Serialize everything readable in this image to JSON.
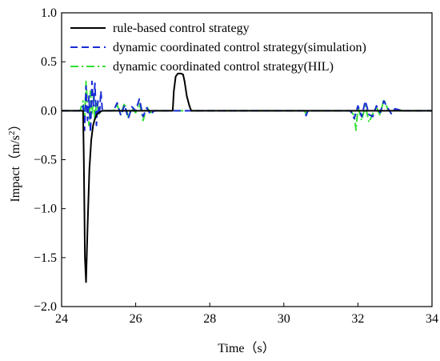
{
  "chart_data": {
    "type": "line",
    "xlabel": "Time（s）",
    "ylabel_main": "Impact（m/s",
    "ylabel_sup": "2",
    "ylabel_end": "）",
    "xlim": [
      24,
      34
    ],
    "ylim": [
      -2.0,
      1.0
    ],
    "xticks": [
      24,
      26,
      28,
      30,
      32,
      34
    ],
    "xtick_labels": [
      "24",
      "26",
      "28",
      "30",
      "32",
      "34"
    ],
    "yticks": [
      1.0,
      0.5,
      0.0,
      -0.5,
      -1.0,
      -1.5,
      -2.0
    ],
    "ytick_labels": [
      "1.0",
      "0.5",
      "0.0",
      "−0.5",
      "−1.0",
      "−1.5",
      "−2.0"
    ],
    "grid": false,
    "legend_position": "top-left",
    "series": [
      {
        "name": "rule-based control strategy",
        "color": "#000000",
        "dash": "solid",
        "x": [
          24.0,
          24.58,
          24.6,
          24.63,
          24.66,
          24.7,
          24.75,
          24.8,
          24.85,
          24.9,
          24.95,
          25.0,
          25.05,
          25.1,
          25.2,
          25.3,
          27.0,
          27.03,
          27.08,
          27.14,
          27.22,
          27.28,
          27.32,
          27.38,
          27.45,
          27.5,
          34.0
        ],
        "y": [
          0.0,
          0.0,
          -0.5,
          -1.5,
          -1.75,
          -1.2,
          -0.6,
          -0.3,
          -0.15,
          -0.08,
          -0.04,
          -0.02,
          -0.01,
          0.0,
          0.0,
          0.0,
          0.0,
          0.2,
          0.35,
          0.38,
          0.38,
          0.37,
          0.3,
          0.15,
          0.05,
          0.0,
          0.0
        ]
      },
      {
        "name": "dynamic coordinated control strategy(simulation)",
        "color": "#1a2bd6",
        "dash": "dashed",
        "x": [
          24.0,
          24.5,
          24.58,
          24.62,
          24.66,
          24.7,
          24.74,
          24.78,
          24.82,
          24.86,
          24.9,
          24.94,
          24.98,
          25.02,
          25.06,
          25.1,
          25.2,
          25.4,
          25.5,
          25.6,
          25.7,
          25.8,
          25.9,
          26.0,
          26.1,
          26.2,
          26.3,
          26.4,
          26.5,
          26.7,
          27.0,
          30.0,
          30.55,
          30.6,
          30.65,
          30.7,
          31.8,
          31.9,
          32.0,
          32.1,
          32.2,
          32.3,
          32.4,
          32.5,
          32.6,
          32.7,
          32.8,
          32.9,
          33.0,
          33.2,
          34.0
        ],
        "y": [
          0.0,
          0.0,
          0.05,
          -0.2,
          0.25,
          -0.1,
          0.15,
          -0.22,
          0.3,
          0.05,
          0.28,
          -0.15,
          0.1,
          -0.05,
          0.2,
          0.0,
          0.0,
          0.0,
          0.08,
          -0.05,
          0.06,
          -0.08,
          0.04,
          0.0,
          0.12,
          -0.06,
          0.03,
          -0.04,
          0.0,
          0.0,
          0.0,
          0.0,
          0.0,
          -0.05,
          0.0,
          0.0,
          0.0,
          -0.08,
          0.05,
          -0.06,
          0.1,
          -0.04,
          -0.06,
          0.05,
          -0.02,
          0.1,
          0.03,
          -0.03,
          0.02,
          0.0,
          0.0
        ]
      },
      {
        "name": "dynamic coordinated control strategy(HIL)",
        "color": "#33e033",
        "dash": "dashdot",
        "x": [
          24.0,
          24.5,
          24.58,
          24.62,
          24.66,
          24.7,
          24.74,
          24.78,
          24.82,
          24.86,
          24.9,
          24.94,
          24.98,
          25.02,
          25.06,
          25.1,
          25.2,
          25.4,
          25.5,
          25.6,
          25.7,
          25.8,
          25.9,
          26.0,
          26.1,
          26.2,
          26.3,
          26.4,
          26.5,
          26.7,
          27.0,
          30.0,
          30.55,
          30.6,
          30.65,
          30.7,
          31.8,
          31.9,
          31.95,
          32.0,
          32.1,
          32.2,
          32.3,
          32.4,
          32.5,
          32.6,
          32.7,
          32.8,
          32.9,
          33.0,
          33.2,
          34.0
        ],
        "y": [
          0.0,
          0.0,
          0.1,
          -0.1,
          0.3,
          0.05,
          -0.15,
          0.2,
          -0.05,
          0.15,
          -0.1,
          0.1,
          0.02,
          -0.03,
          0.0,
          0.0,
          0.0,
          0.0,
          0.06,
          -0.04,
          0.08,
          -0.06,
          0.02,
          -0.02,
          0.08,
          -0.1,
          0.04,
          -0.02,
          0.0,
          0.0,
          0.0,
          0.0,
          0.0,
          -0.03,
          0.0,
          0.0,
          0.0,
          -0.05,
          -0.2,
          0.04,
          -0.1,
          0.05,
          -0.12,
          -0.03,
          0.04,
          -0.05,
          0.12,
          0.02,
          -0.02,
          0.02,
          0.0,
          0.0
        ]
      }
    ]
  }
}
